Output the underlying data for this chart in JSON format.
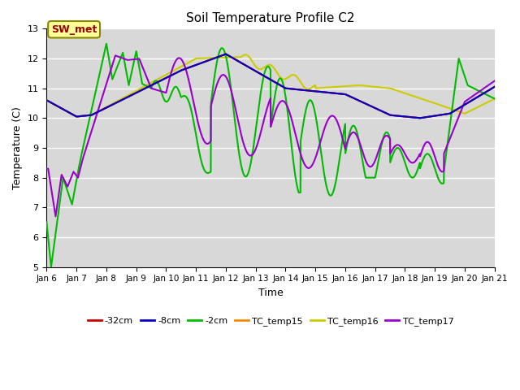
{
  "title": "Soil Temperature Profile C2",
  "xlabel": "Time",
  "ylabel": "Temperature (C)",
  "ylim": [
    5.0,
    13.0
  ],
  "yticks": [
    5.0,
    6.0,
    7.0,
    8.0,
    9.0,
    10.0,
    11.0,
    12.0,
    13.0
  ],
  "bg_color": "#d8d8d8",
  "annotation_text": "SW_met",
  "annotation_bg": "#ffff99",
  "annotation_border": "#888800",
  "annotation_text_color": "#990000",
  "legend_entries": [
    {
      "label": "-32cm",
      "color": "#cc0000"
    },
    {
      "label": "-8cm",
      "color": "#0000cc"
    },
    {
      "label": "-2cm",
      "color": "#00bb00"
    },
    {
      "label": "TC_temp15",
      "color": "#ff8800"
    },
    {
      "label": "TC_temp16",
      "color": "#cccc00"
    },
    {
      "label": "TC_temp17",
      "color": "#9900cc"
    }
  ],
  "xtick_labels": [
    "Jan 6",
    "Jan 7",
    "Jan 8",
    "Jan 9",
    "Jan 10",
    "Jan 11",
    "Jan 12",
    "Jan 13",
    "Jan 14",
    "Jan 15",
    "Jan 16",
    "Jan 17",
    "Jan 18",
    "Jan 19",
    "Jan 20",
    "Jan 21"
  ],
  "xtick_positions": [
    6,
    7,
    8,
    9,
    10,
    11,
    12,
    13,
    14,
    15,
    16,
    17,
    18,
    19,
    20,
    21
  ]
}
